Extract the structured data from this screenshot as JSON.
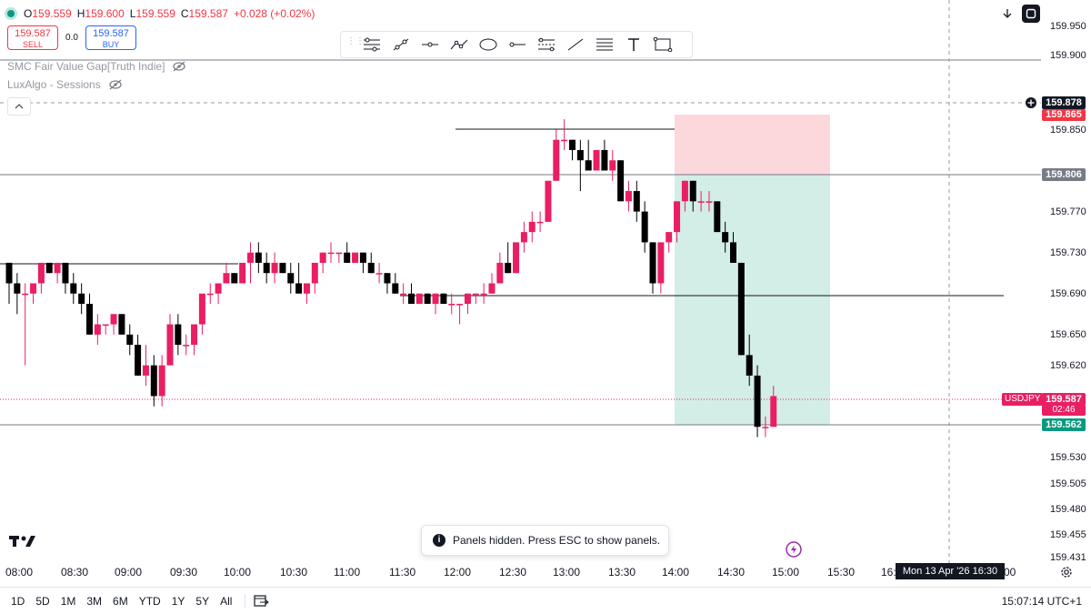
{
  "symbol": "USDJPY",
  "ohlc": {
    "o_label": "O",
    "o": "159.559",
    "h_label": "H",
    "h": "159.600",
    "l_label": "L",
    "l": "159.559",
    "c_label": "C",
    "c": "159.587",
    "change": "+0.028 (+0.02%)"
  },
  "trade": {
    "sell_price": "159.587",
    "sell_label": "SELL",
    "spread": "0.0",
    "buy_price": "159.587",
    "buy_label": "BUY"
  },
  "indicators": [
    "SMC Fair Value Gap[Truth Indie]",
    "LuxAlgo - Sessions"
  ],
  "drawing_tools": [
    "horizontal-lines-icon",
    "trend-line-icon",
    "horizontal-ray-icon",
    "polyline-icon",
    "ellipse-icon",
    "ray-icon",
    "parallel-lines-icon",
    "line-icon",
    "fib-icon",
    "text-icon",
    "rectangle-icon"
  ],
  "price_ticks": [
    "159.950",
    "159.900",
    "159.850",
    "159.770",
    "159.730",
    "159.690",
    "159.650",
    "159.620",
    "159.530",
    "159.505",
    "159.480",
    "159.455",
    "159.431"
  ],
  "price_labels": {
    "crosshair": "159.878",
    "stop": "159.865",
    "entry": "159.806",
    "current": "159.587",
    "countdown": "02:46",
    "target": "159.562"
  },
  "time_ticks": [
    "08:00",
    "08:30",
    "09:00",
    "09:30",
    "10:00",
    "10:30",
    "11:00",
    "11:30",
    "12:00",
    "12:30",
    "13:00",
    "13:30",
    "14:00",
    "14:30",
    "15:00",
    "15:30",
    "16:",
    "00"
  ],
  "crosshair_time": "Mon 13 Apr '26   16:30",
  "toast": "Panels hidden. Press ESC to show panels.",
  "ranges": [
    "1D",
    "5D",
    "1M",
    "3M",
    "6M",
    "YTD",
    "1Y",
    "5Y",
    "All"
  ],
  "clock": "15:07:14 UTC+1",
  "colors": {
    "up": "#e91e63",
    "down": "#000000",
    "stop_zone": "#fcd8dc",
    "target_zone": "#d3ede7"
  },
  "candles": [
    [
      159.72,
      159.72,
      159.68,
      159.7
    ],
    [
      159.7,
      159.71,
      159.67,
      159.69
    ],
    [
      159.69,
      159.7,
      159.62,
      159.69
    ],
    [
      159.69,
      159.7,
      159.68,
      159.7
    ],
    [
      159.7,
      159.72,
      159.69,
      159.72
    ],
    [
      159.72,
      159.72,
      159.71,
      159.71
    ],
    [
      159.71,
      159.72,
      159.7,
      159.72
    ],
    [
      159.72,
      159.72,
      159.69,
      159.7
    ],
    [
      159.7,
      159.71,
      159.68,
      159.69
    ],
    [
      159.69,
      159.7,
      159.67,
      159.68
    ],
    [
      159.68,
      159.69,
      159.65,
      159.65
    ],
    [
      159.65,
      159.67,
      159.64,
      159.66
    ],
    [
      159.66,
      159.66,
      159.65,
      159.66
    ],
    [
      159.66,
      159.67,
      159.65,
      159.67
    ],
    [
      159.67,
      159.67,
      159.65,
      159.65
    ],
    [
      159.65,
      159.66,
      159.63,
      159.64
    ],
    [
      159.64,
      159.65,
      159.61,
      159.61
    ],
    [
      159.61,
      159.64,
      159.6,
      159.62
    ],
    [
      159.62,
      159.63,
      159.58,
      159.59
    ],
    [
      159.59,
      159.63,
      159.58,
      159.62
    ],
    [
      159.62,
      159.67,
      159.62,
      159.66
    ],
    [
      159.66,
      159.67,
      159.63,
      159.64
    ],
    [
      159.64,
      159.65,
      159.63,
      159.64
    ],
    [
      159.64,
      159.66,
      159.63,
      159.66
    ],
    [
      159.66,
      159.69,
      159.65,
      159.69
    ],
    [
      159.69,
      159.7,
      159.68,
      159.69
    ],
    [
      159.69,
      159.7,
      159.68,
      159.7
    ],
    [
      159.7,
      159.72,
      159.7,
      159.71
    ],
    [
      159.71,
      159.71,
      159.7,
      159.7
    ],
    [
      159.7,
      159.72,
      159.7,
      159.72
    ],
    [
      159.72,
      159.74,
      159.7,
      159.73
    ],
    [
      159.73,
      159.74,
      159.71,
      159.72
    ],
    [
      159.72,
      159.73,
      159.7,
      159.71
    ],
    [
      159.71,
      159.73,
      159.7,
      159.72
    ],
    [
      159.72,
      159.72,
      159.71,
      159.71
    ],
    [
      159.71,
      159.72,
      159.69,
      159.7
    ],
    [
      159.7,
      159.72,
      159.69,
      159.69
    ],
    [
      159.69,
      159.7,
      159.68,
      159.7
    ],
    [
      159.7,
      159.72,
      159.69,
      159.72
    ],
    [
      159.72,
      159.73,
      159.71,
      159.73
    ],
    [
      159.73,
      159.74,
      159.72,
      159.73
    ],
    [
      159.73,
      159.73,
      159.72,
      159.73
    ],
    [
      159.73,
      159.74,
      159.72,
      159.72
    ],
    [
      159.72,
      159.73,
      159.72,
      159.73
    ],
    [
      159.73,
      159.73,
      159.71,
      159.72
    ],
    [
      159.72,
      159.73,
      159.71,
      159.71
    ],
    [
      159.71,
      159.72,
      159.7,
      159.71
    ],
    [
      159.71,
      159.71,
      159.69,
      159.7
    ],
    [
      159.7,
      159.71,
      159.69,
      159.69
    ],
    [
      159.69,
      159.7,
      159.68,
      159.69
    ],
    [
      159.69,
      159.7,
      159.68,
      159.68
    ],
    [
      159.68,
      159.69,
      159.68,
      159.69
    ],
    [
      159.69,
      159.69,
      159.68,
      159.68
    ],
    [
      159.68,
      159.69,
      159.67,
      159.69
    ],
    [
      159.69,
      159.69,
      159.68,
      159.68
    ],
    [
      159.68,
      159.69,
      159.67,
      159.68
    ],
    [
      159.68,
      159.68,
      159.66,
      159.68
    ],
    [
      159.68,
      159.69,
      159.67,
      159.69
    ],
    [
      159.69,
      159.69,
      159.68,
      159.69
    ],
    [
      159.69,
      159.7,
      159.68,
      159.69
    ],
    [
      159.69,
      159.71,
      159.69,
      159.7
    ],
    [
      159.7,
      159.73,
      159.7,
      159.72
    ],
    [
      159.72,
      159.74,
      159.71,
      159.71
    ],
    [
      159.71,
      159.74,
      159.71,
      159.74
    ],
    [
      159.74,
      159.76,
      159.73,
      159.75
    ],
    [
      159.75,
      159.77,
      159.74,
      159.76
    ],
    [
      159.76,
      159.77,
      159.75,
      159.76
    ],
    [
      159.76,
      159.8,
      159.76,
      159.8
    ],
    [
      159.8,
      159.85,
      159.8,
      159.84
    ],
    [
      159.84,
      159.86,
      159.83,
      159.84
    ],
    [
      159.84,
      159.84,
      159.82,
      159.83
    ],
    [
      159.83,
      159.84,
      159.79,
      159.82
    ],
    [
      159.82,
      159.84,
      159.81,
      159.81
    ],
    [
      159.81,
      159.83,
      159.81,
      159.83
    ],
    [
      159.83,
      159.84,
      159.81,
      159.81
    ],
    [
      159.81,
      159.83,
      159.8,
      159.82
    ],
    [
      159.82,
      159.82,
      159.78,
      159.78
    ],
    [
      159.78,
      159.8,
      159.77,
      159.79
    ],
    [
      159.79,
      159.8,
      159.76,
      159.77
    ],
    [
      159.77,
      159.78,
      159.73,
      159.74
    ],
    [
      159.74,
      159.74,
      159.69,
      159.7
    ],
    [
      159.7,
      159.74,
      159.69,
      159.74
    ],
    [
      159.74,
      159.75,
      159.73,
      159.75
    ],
    [
      159.75,
      159.78,
      159.74,
      159.78
    ],
    [
      159.78,
      159.8,
      159.77,
      159.8
    ],
    [
      159.8,
      159.8,
      159.77,
      159.78
    ],
    [
      159.78,
      159.79,
      159.77,
      159.78
    ],
    [
      159.78,
      159.79,
      159.77,
      159.78
    ],
    [
      159.78,
      159.78,
      159.75,
      159.75
    ],
    [
      159.75,
      159.76,
      159.73,
      159.74
    ],
    [
      159.74,
      159.75,
      159.72,
      159.72
    ],
    [
      159.72,
      159.72,
      159.63,
      159.63
    ],
    [
      159.63,
      159.65,
      159.6,
      159.61
    ],
    [
      159.61,
      159.62,
      159.55,
      159.56
    ],
    [
      159.56,
      159.57,
      159.55,
      159.56
    ],
    [
      159.56,
      159.6,
      159.56,
      159.59
    ]
  ]
}
